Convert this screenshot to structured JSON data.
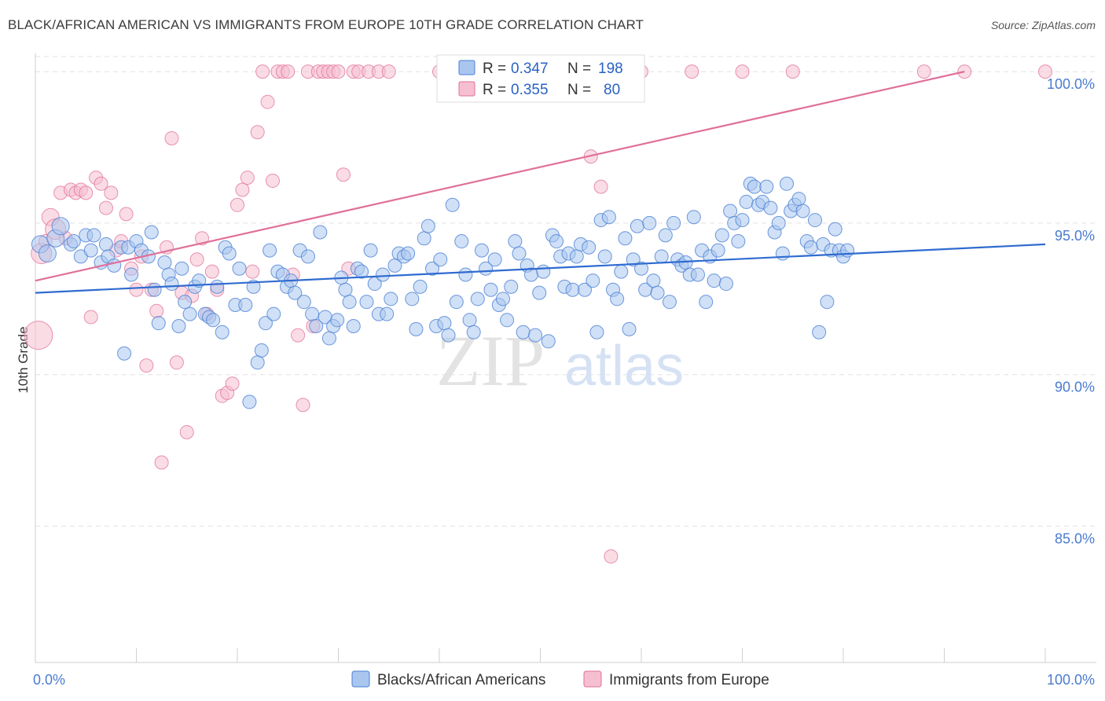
{
  "header": {
    "title": "BLACK/AFRICAN AMERICAN VS IMMIGRANTS FROM EUROPE 10TH GRADE CORRELATION CHART",
    "source": "Source: ZipAtlas.com"
  },
  "watermark": {
    "zip": "ZIP",
    "atlas": "atlas"
  },
  "legend": {
    "r_label": "R =",
    "n_label": "N =",
    "series": [
      {
        "r": "0.347",
        "n": "198"
      },
      {
        "r": "0.355",
        "n": "80"
      }
    ]
  },
  "chart_data": {
    "type": "scatter",
    "title": "BLACK/AFRICAN AMERICAN VS IMMIGRANTS FROM EUROPE 10TH GRADE CORRELATION CHART",
    "xlabel": "",
    "ylabel": "10th Grade",
    "xlim": [
      0,
      100
    ],
    "ylim": [
      80.5,
      100.6
    ],
    "x_tick_labels": [
      "0.0%",
      "100.0%"
    ],
    "y_ticks": [
      85,
      90,
      95,
      100
    ],
    "y_tick_labels": [
      "85.0%",
      "90.0%",
      "95.0%",
      "100.0%"
    ],
    "grid": true,
    "legend_position": "top-center",
    "colors": {
      "blue": "#4a7fd4",
      "blue_fill": "#a9c6ef",
      "pink": "#e0709a",
      "pink_fill": "#f5bfd0"
    },
    "series": [
      {
        "name": "Blacks/African Americans",
        "color": "#4a7fd4",
        "trend": {
          "x": [
            0,
            100
          ],
          "y": [
            92.7,
            94.3
          ]
        },
        "points": [
          [
            0.5,
            94.3
          ],
          [
            1.2,
            94.0
          ],
          [
            2.0,
            94.5
          ],
          [
            2.5,
            94.9
          ],
          [
            3.5,
            94.3
          ],
          [
            3.8,
            94.4
          ],
          [
            4.5,
            93.9
          ],
          [
            5.0,
            94.6
          ],
          [
            5.5,
            94.1
          ],
          [
            5.8,
            94.6
          ],
          [
            6.5,
            93.7
          ],
          [
            7.0,
            94.3
          ],
          [
            7.2,
            93.9
          ],
          [
            7.8,
            93.6
          ],
          [
            8.5,
            94.2
          ],
          [
            8.8,
            90.7
          ],
          [
            9.2,
            94.2
          ],
          [
            9.5,
            93.3
          ],
          [
            10.0,
            94.4
          ],
          [
            10.5,
            94.1
          ],
          [
            11.2,
            93.9
          ],
          [
            11.5,
            94.7
          ],
          [
            11.8,
            92.8
          ],
          [
            12.2,
            91.7
          ],
          [
            12.8,
            93.7
          ],
          [
            13.2,
            93.3
          ],
          [
            13.5,
            93.0
          ],
          [
            14.2,
            91.6
          ],
          [
            14.5,
            93.5
          ],
          [
            14.8,
            92.4
          ],
          [
            15.3,
            92.0
          ],
          [
            15.8,
            92.9
          ],
          [
            16.2,
            93.1
          ],
          [
            16.8,
            92.0
          ],
          [
            17.2,
            91.9
          ],
          [
            17.6,
            91.8
          ],
          [
            18.0,
            92.9
          ],
          [
            18.5,
            91.4
          ],
          [
            18.8,
            94.2
          ],
          [
            19.2,
            94.0
          ],
          [
            19.8,
            92.3
          ],
          [
            20.2,
            93.5
          ],
          [
            20.8,
            92.3
          ],
          [
            21.2,
            89.1
          ],
          [
            21.6,
            92.9
          ],
          [
            22.0,
            90.4
          ],
          [
            22.4,
            90.8
          ],
          [
            22.8,
            91.7
          ],
          [
            23.2,
            94.1
          ],
          [
            23.6,
            92.0
          ],
          [
            24.0,
            93.4
          ],
          [
            24.5,
            93.3
          ],
          [
            24.9,
            92.9
          ],
          [
            25.3,
            93.1
          ],
          [
            25.7,
            92.7
          ],
          [
            26.2,
            94.1
          ],
          [
            26.6,
            92.4
          ],
          [
            27.0,
            93.9
          ],
          [
            27.4,
            92.0
          ],
          [
            27.8,
            91.6
          ],
          [
            28.2,
            94.7
          ],
          [
            28.7,
            91.9
          ],
          [
            29.1,
            91.2
          ],
          [
            29.5,
            91.6
          ],
          [
            29.9,
            91.8
          ],
          [
            30.3,
            93.2
          ],
          [
            30.7,
            92.8
          ],
          [
            31.1,
            92.4
          ],
          [
            31.5,
            91.6
          ],
          [
            31.9,
            93.5
          ],
          [
            32.3,
            93.4
          ],
          [
            32.8,
            92.4
          ],
          [
            33.2,
            94.1
          ],
          [
            33.6,
            93.0
          ],
          [
            34.0,
            92.0
          ],
          [
            34.4,
            93.3
          ],
          [
            34.8,
            92.0
          ],
          [
            35.2,
            92.5
          ],
          [
            35.6,
            93.6
          ],
          [
            36.0,
            94.0
          ],
          [
            36.5,
            93.9
          ],
          [
            36.9,
            94.0
          ],
          [
            37.3,
            92.5
          ],
          [
            37.7,
            91.5
          ],
          [
            38.1,
            92.9
          ],
          [
            38.5,
            94.5
          ],
          [
            38.9,
            94.9
          ],
          [
            39.3,
            93.5
          ],
          [
            39.7,
            91.6
          ],
          [
            40.1,
            93.8
          ],
          [
            40.5,
            91.7
          ],
          [
            40.9,
            91.3
          ],
          [
            41.3,
            95.6
          ],
          [
            41.7,
            92.4
          ],
          [
            42.2,
            94.4
          ],
          [
            42.6,
            93.3
          ],
          [
            43.0,
            91.8
          ],
          [
            43.4,
            91.4
          ],
          [
            43.8,
            92.5
          ],
          [
            44.2,
            94.1
          ],
          [
            44.6,
            93.5
          ],
          [
            45.1,
            92.8
          ],
          [
            45.5,
            93.8
          ],
          [
            45.9,
            92.3
          ],
          [
            46.3,
            92.5
          ],
          [
            46.7,
            91.8
          ],
          [
            47.1,
            92.9
          ],
          [
            47.5,
            94.4
          ],
          [
            47.9,
            94.0
          ],
          [
            48.3,
            91.4
          ],
          [
            48.7,
            93.6
          ],
          [
            49.1,
            93.3
          ],
          [
            49.5,
            91.3
          ],
          [
            49.9,
            92.7
          ],
          [
            50.3,
            93.4
          ],
          [
            50.8,
            91.1
          ],
          [
            51.2,
            94.6
          ],
          [
            51.6,
            94.4
          ],
          [
            52.0,
            93.9
          ],
          [
            52.4,
            92.9
          ],
          [
            52.8,
            94.0
          ],
          [
            53.2,
            92.8
          ],
          [
            53.6,
            93.9
          ],
          [
            54.0,
            94.3
          ],
          [
            54.4,
            92.8
          ],
          [
            54.8,
            94.2
          ],
          [
            55.2,
            93.1
          ],
          [
            55.6,
            91.4
          ],
          [
            56.0,
            95.1
          ],
          [
            56.4,
            93.9
          ],
          [
            56.8,
            95.2
          ],
          [
            57.2,
            92.8
          ],
          [
            57.6,
            92.5
          ],
          [
            58.0,
            93.4
          ],
          [
            58.4,
            94.5
          ],
          [
            58.8,
            91.5
          ],
          [
            59.2,
            93.8
          ],
          [
            59.6,
            94.9
          ],
          [
            60.0,
            93.5
          ],
          [
            60.4,
            92.8
          ],
          [
            60.8,
            95.0
          ],
          [
            61.2,
            93.1
          ],
          [
            61.6,
            92.7
          ],
          [
            62.0,
            93.9
          ],
          [
            62.4,
            94.6
          ],
          [
            62.8,
            92.4
          ],
          [
            63.2,
            95.0
          ],
          [
            63.6,
            93.8
          ],
          [
            64.0,
            93.6
          ],
          [
            64.4,
            93.7
          ],
          [
            64.8,
            93.3
          ],
          [
            65.2,
            95.2
          ],
          [
            65.6,
            93.3
          ],
          [
            66.0,
            94.1
          ],
          [
            66.4,
            92.4
          ],
          [
            66.8,
            93.9
          ],
          [
            67.2,
            93.1
          ],
          [
            67.6,
            94.1
          ],
          [
            68.0,
            94.6
          ],
          [
            68.4,
            93.0
          ],
          [
            68.8,
            95.4
          ],
          [
            69.2,
            95.0
          ],
          [
            69.6,
            94.4
          ],
          [
            70.0,
            95.1
          ],
          [
            70.4,
            95.7
          ],
          [
            70.8,
            96.3
          ],
          [
            71.2,
            96.2
          ],
          [
            71.6,
            95.6
          ],
          [
            72.0,
            95.7
          ],
          [
            72.4,
            96.2
          ],
          [
            72.8,
            95.5
          ],
          [
            73.2,
            94.7
          ],
          [
            73.6,
            95.0
          ],
          [
            74.0,
            94.0
          ],
          [
            74.4,
            96.3
          ],
          [
            74.8,
            95.4
          ],
          [
            75.2,
            95.6
          ],
          [
            75.6,
            95.8
          ],
          [
            76.0,
            95.4
          ],
          [
            76.4,
            94.4
          ],
          [
            76.8,
            94.2
          ],
          [
            77.2,
            95.1
          ],
          [
            77.6,
            91.4
          ],
          [
            78.0,
            94.3
          ],
          [
            78.4,
            92.4
          ],
          [
            78.8,
            94.1
          ],
          [
            79.2,
            94.8
          ],
          [
            79.6,
            94.1
          ],
          [
            80.0,
            93.9
          ],
          [
            80.4,
            94.1
          ]
        ]
      },
      {
        "name": "Immigrants from Europe",
        "color": "#e0709a",
        "trend": {
          "x": [
            0,
            92
          ],
          "y": [
            93.1,
            100.0
          ]
        },
        "points": [
          [
            0.3,
            91.3
          ],
          [
            0.6,
            94.0
          ],
          [
            1.0,
            94.4
          ],
          [
            1.5,
            95.2
          ],
          [
            2.0,
            94.8
          ],
          [
            2.5,
            96.0
          ],
          [
            3.0,
            94.5
          ],
          [
            3.5,
            96.1
          ],
          [
            4.0,
            96.0
          ],
          [
            4.5,
            96.1
          ],
          [
            5.0,
            96.0
          ],
          [
            5.5,
            91.9
          ],
          [
            6.0,
            96.5
          ],
          [
            6.5,
            96.3
          ],
          [
            7.0,
            95.5
          ],
          [
            7.5,
            96.0
          ],
          [
            8.0,
            94.1
          ],
          [
            8.5,
            94.4
          ],
          [
            9.0,
            95.3
          ],
          [
            9.5,
            93.5
          ],
          [
            10.0,
            92.8
          ],
          [
            10.5,
            93.9
          ],
          [
            11.0,
            90.3
          ],
          [
            11.5,
            92.8
          ],
          [
            12.0,
            92.1
          ],
          [
            12.5,
            87.1
          ],
          [
            13.0,
            94.2
          ],
          [
            13.5,
            97.8
          ],
          [
            14.0,
            90.4
          ],
          [
            14.5,
            92.7
          ],
          [
            15.0,
            88.1
          ],
          [
            15.5,
            92.6
          ],
          [
            16.0,
            93.8
          ],
          [
            16.5,
            94.5
          ],
          [
            17.0,
            92.0
          ],
          [
            17.5,
            93.4
          ],
          [
            18.0,
            92.8
          ],
          [
            18.5,
            89.3
          ],
          [
            19.0,
            89.4
          ],
          [
            19.5,
            89.7
          ],
          [
            20.0,
            95.6
          ],
          [
            20.5,
            96.1
          ],
          [
            21.0,
            96.5
          ],
          [
            21.5,
            93.4
          ],
          [
            22.0,
            98.0
          ],
          [
            22.5,
            100.0
          ],
          [
            23.0,
            99.0
          ],
          [
            23.5,
            96.4
          ],
          [
            24.0,
            100.0
          ],
          [
            24.5,
            100.0
          ],
          [
            25.0,
            100.0
          ],
          [
            25.5,
            93.3
          ],
          [
            26.0,
            91.3
          ],
          [
            26.5,
            89.0
          ],
          [
            27.0,
            100.0
          ],
          [
            27.5,
            91.6
          ],
          [
            28.0,
            100.0
          ],
          [
            28.5,
            100.0
          ],
          [
            29.0,
            100.0
          ],
          [
            29.5,
            100.0
          ],
          [
            30.0,
            100.0
          ],
          [
            30.5,
            96.6
          ],
          [
            31.0,
            93.5
          ],
          [
            31.5,
            100.0
          ],
          [
            32.0,
            100.0
          ],
          [
            33.0,
            100.0
          ],
          [
            34.0,
            100.0
          ],
          [
            35.0,
            100.0
          ],
          [
            40.0,
            100.0
          ],
          [
            45.0,
            100.0
          ],
          [
            55.0,
            97.2
          ],
          [
            56.0,
            96.2
          ],
          [
            57.0,
            84.0
          ],
          [
            60.0,
            100.0
          ],
          [
            65.0,
            100.0
          ],
          [
            70.0,
            100.0
          ],
          [
            75.0,
            100.0
          ],
          [
            88.0,
            100.0
          ],
          [
            92.0,
            100.0
          ],
          [
            100.0,
            100.0
          ]
        ]
      }
    ]
  }
}
